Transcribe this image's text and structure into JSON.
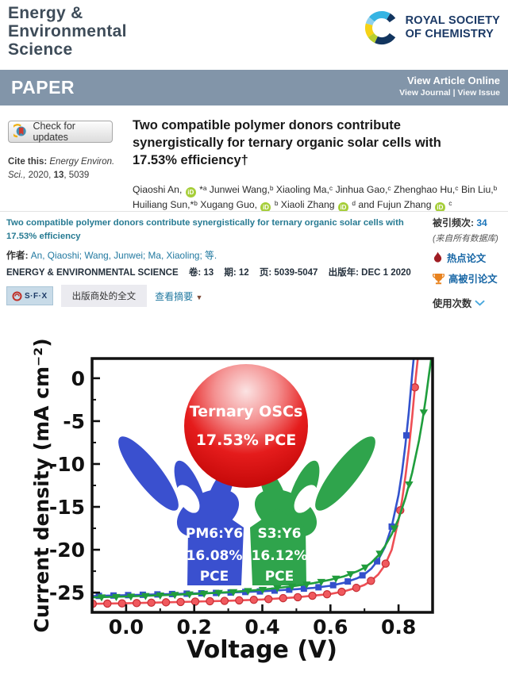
{
  "colors": {
    "banner": "#8295a9",
    "journal_slate": "#3e4c59",
    "rsc_navy": "#1c3a66",
    "orcid_green": "#a6ce39",
    "wos_teal": "#267a92",
    "wos_link_blue": "#1766a5",
    "cited_blue": "#1b75bb",
    "flame_red": "#9f1d23",
    "trophy_orange": "#e8821e",
    "curve_blue": "#3353cd",
    "curve_red": "#ee4f55",
    "curve_green": "#1f9e3d",
    "hand_blue": "#3a50cf",
    "hand_green": "#2fa44c"
  },
  "header": {
    "journal_title_lines": [
      "Energy &",
      "Environmental",
      "Science"
    ],
    "rsc_logo": {
      "line1": "ROYAL SOCIETY",
      "line2": "OF CHEMISTRY"
    },
    "banner": {
      "label": "PAPER",
      "view_article": "View Article Online",
      "view_links": "View Journal | View Issue"
    }
  },
  "article": {
    "check_updates": "Check for updates",
    "cite": {
      "prefix": "Cite this: ",
      "journal": "Energy Environ. Sci.,",
      "year": " 2020, ",
      "volume": "13",
      "pages": ", 5039"
    },
    "title": "Two compatible polymer donors contribute synergistically for ternary organic solar cells with 17.53% efficiency†",
    "authors_segments": [
      {
        "text": "Qiaoshi An, "
      },
      {
        "icon": "orcid"
      },
      {
        "text": " *ᵃ Junwei Wang,ᵇ Xiaoling Ma,ᶜ Jinhua Gao,ᶜ Zhenghao Hu,ᶜ Bin Liu,ᵇ Huiliang Sun,*ᵇ Xugang Guo, "
      },
      {
        "icon": "orcid"
      },
      {
        "text": " ᵇ Xiaoli Zhang "
      },
      {
        "icon": "orcid"
      },
      {
        "text": " ᵈ and Fujun Zhang "
      },
      {
        "icon": "orcid"
      },
      {
        "text": " ᶜ"
      }
    ]
  },
  "wos": {
    "title": "Two compatible polymer donors contribute synergistically for ternary organic solar cells with 17.53% efficiency",
    "authors_label": "作者:",
    "authors_value": " An, Qiaoshi; Wang, Junwei; Ma, Xiaoling; 等.",
    "source": {
      "journal": "ENERGY & ENVIRONMENTAL SCIENCE",
      "vol_label": "卷: ",
      "vol": "13",
      "issue_label": "期: ",
      "issue": "12",
      "pages_label": "页: ",
      "pages": "5039-5047",
      "date_label": "出版年: ",
      "date": "DEC 1 2020"
    },
    "sfx_label": "S·F·X",
    "fulltext_button": "出版商处的全文",
    "abstract_toggle": "查看摘要",
    "abstract_arrow": "▼",
    "cited": {
      "label": "被引频次: ",
      "count": "34",
      "scope": "(来自所有数据库)"
    },
    "badges": {
      "hot": "热点论文",
      "highly_cited": "高被引论文"
    },
    "usage": "使用次数"
  },
  "chart_data": {
    "type": "line",
    "xlabel": "Voltage (V)",
    "ylabel": "Current density (mA cm⁻²)",
    "xlim": [
      -0.1,
      0.9
    ],
    "ylim": [
      -27.3,
      2.3
    ],
    "x_ticks": [
      0.0,
      0.2,
      0.4,
      0.6,
      0.8
    ],
    "x_minor_step": 0.1,
    "y_ticks": [
      0,
      -5,
      -10,
      -15,
      -20,
      -25
    ],
    "y_minor_step": 2.5,
    "grid": false,
    "legend": "none (labels drawn on hand graphics)",
    "series": [
      {
        "name": "PM6:S3:Y6 ternary",
        "color": "#ee4f55",
        "line_width": 2.6,
        "marker": "circle",
        "marker_fill": "#f0595e",
        "marker_stroke": "#c62f35",
        "marker_start": -0.098,
        "marker_interval": 0.043,
        "points": [
          [
            -0.1,
            -26.3
          ],
          [
            0,
            -26.25
          ],
          [
            0.1,
            -26.15
          ],
          [
            0.2,
            -26.05
          ],
          [
            0.3,
            -25.95
          ],
          [
            0.4,
            -25.8
          ],
          [
            0.5,
            -25.55
          ],
          [
            0.6,
            -25.15
          ],
          [
            0.64,
            -24.85
          ],
          [
            0.68,
            -24.4
          ],
          [
            0.7,
            -24.1
          ],
          [
            0.72,
            -23.6
          ],
          [
            0.74,
            -22.9
          ],
          [
            0.76,
            -21.8
          ],
          [
            0.78,
            -20.0
          ],
          [
            0.8,
            -16.5
          ],
          [
            0.81,
            -14.3
          ],
          [
            0.82,
            -11.5
          ],
          [
            0.83,
            -8.3
          ],
          [
            0.84,
            -4.5
          ],
          [
            0.85,
            -0.2
          ],
          [
            0.857,
            2.5
          ]
        ]
      },
      {
        "name": "PM6:Y6 binary",
        "color": "#3353cd",
        "line_width": 2.6,
        "marker": "square",
        "marker_fill": "#3350cb",
        "marker_stroke": "none",
        "marker_start": -0.08,
        "marker_interval": 0.043,
        "points": [
          [
            -0.1,
            -25.4
          ],
          [
            0,
            -25.3
          ],
          [
            0.1,
            -25.2
          ],
          [
            0.2,
            -25.1
          ],
          [
            0.3,
            -25.0
          ],
          [
            0.4,
            -24.85
          ],
          [
            0.5,
            -24.6
          ],
          [
            0.55,
            -24.45
          ],
          [
            0.6,
            -24.2
          ],
          [
            0.64,
            -23.85
          ],
          [
            0.68,
            -23.3
          ],
          [
            0.7,
            -22.85
          ],
          [
            0.72,
            -22.2
          ],
          [
            0.74,
            -21.2
          ],
          [
            0.76,
            -19.7
          ],
          [
            0.78,
            -17.3
          ],
          [
            0.8,
            -13.6
          ],
          [
            0.81,
            -11.0
          ],
          [
            0.82,
            -7.8
          ],
          [
            0.83,
            -4.0
          ],
          [
            0.84,
            0.5
          ],
          [
            0.845,
            2.5
          ]
        ]
      },
      {
        "name": "S3:Y6 binary",
        "color": "#1f9e3d",
        "line_width": 2.6,
        "marker": "triangle-down",
        "marker_fill": "#219c3c",
        "marker_stroke": "none",
        "marker_start": -0.072,
        "marker_interval": 0.043,
        "points": [
          [
            -0.1,
            -25.55
          ],
          [
            0,
            -25.45
          ],
          [
            0.1,
            -25.3
          ],
          [
            0.2,
            -25.15
          ],
          [
            0.3,
            -24.95
          ],
          [
            0.4,
            -24.65
          ],
          [
            0.5,
            -24.2
          ],
          [
            0.55,
            -23.9
          ],
          [
            0.6,
            -23.5
          ],
          [
            0.64,
            -23.1
          ],
          [
            0.68,
            -22.5
          ],
          [
            0.7,
            -22.1
          ],
          [
            0.72,
            -21.5
          ],
          [
            0.74,
            -20.7
          ],
          [
            0.76,
            -19.6
          ],
          [
            0.78,
            -18.2
          ],
          [
            0.8,
            -16.4
          ],
          [
            0.82,
            -14.0
          ],
          [
            0.84,
            -11.0
          ],
          [
            0.86,
            -7.3
          ],
          [
            0.87,
            -5.0
          ],
          [
            0.88,
            -2.4
          ],
          [
            0.89,
            0.6
          ],
          [
            0.897,
            2.5
          ]
        ]
      }
    ],
    "annotations": {
      "ball_title": "Ternary OSCs",
      "ball_pce": "17.53% PCE",
      "left_hand": {
        "label": "PM6:Y6",
        "pce": "16.08%",
        "pce2": "PCE"
      },
      "right_hand": {
        "label": "S3:Y6",
        "pce": "16.12%",
        "pce2": "PCE"
      }
    }
  }
}
